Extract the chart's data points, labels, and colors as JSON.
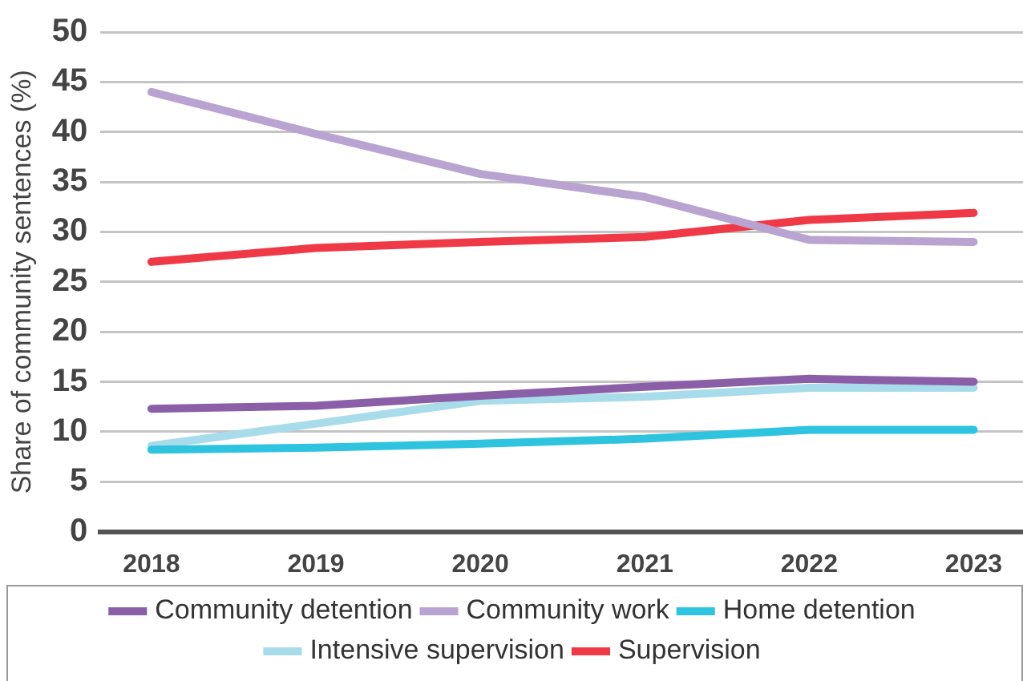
{
  "chart_data": {
    "type": "line",
    "ylabel": "Share of community sentences (%)",
    "x": [
      2018,
      2019,
      2020,
      2021,
      2022,
      2023
    ],
    "xlim": [
      2017.69,
      2023.3
    ],
    "xticks": [
      2018,
      2019,
      2020,
      2021,
      2022,
      2023
    ],
    "ylim": [
      0,
      50
    ],
    "yticks": [
      0,
      5,
      10,
      15,
      20,
      25,
      30,
      35,
      40,
      45,
      50
    ],
    "grid": "y",
    "legend": "bottom",
    "marker": "none",
    "line_style": "solid",
    "series": [
      {
        "name": "Community detention",
        "color": "#8b5fa8",
        "values": [
          12.3,
          12.6,
          13.6,
          14.5,
          15.3,
          15
        ]
      },
      {
        "name": "Community work",
        "color": "#b9a3d0",
        "values": [
          44,
          39.8,
          35.8,
          33.5,
          29.2,
          29
        ]
      },
      {
        "name": "Home detention",
        "color": "#2ec4e0",
        "values": [
          8.2,
          8.4,
          8.8,
          9.3,
          10.2,
          10.2
        ]
      },
      {
        "name": "Intensive supervision",
        "color": "#a8dcea",
        "values": [
          8.6,
          10.8,
          13.1,
          13.5,
          14.4,
          14.4
        ]
      },
      {
        "name": "Supervision",
        "color": "#ef3946",
        "values": [
          27,
          28.4,
          29,
          29.5,
          31.2,
          31.9
        ]
      }
    ]
  }
}
